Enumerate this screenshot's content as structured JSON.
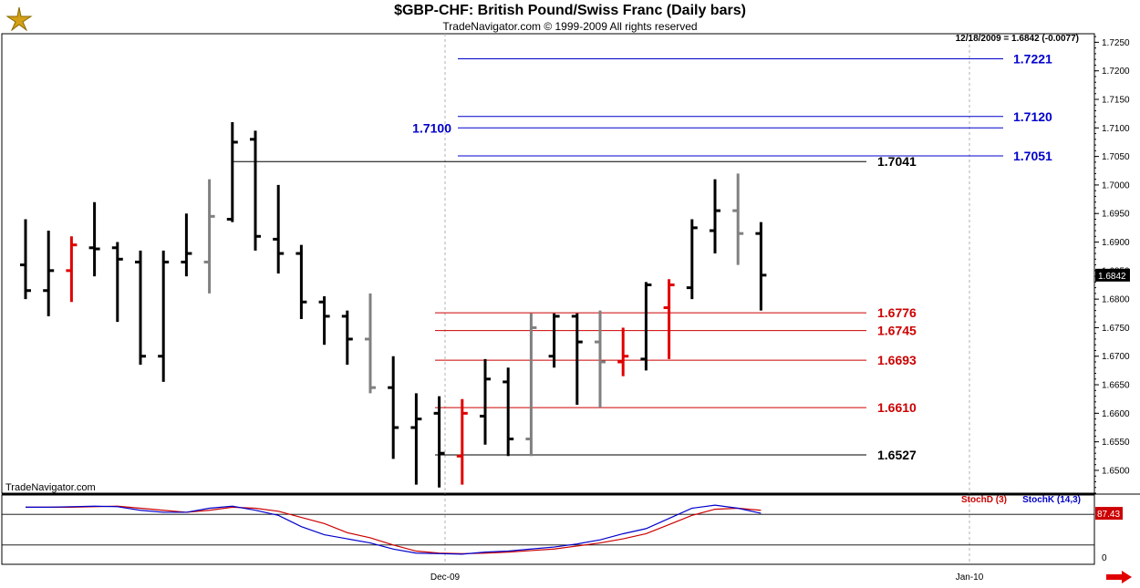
{
  "header": {
    "title": "$GBP-CHF:  British Pound/Swiss Franc  (Daily bars)",
    "copyright": "TradeNavigator.com © 1999-2009 All rights reserved",
    "quote": "12/18/2009 = 1.6842 (-0.0077)",
    "watermark": "TradeNavigator.com"
  },
  "indicator": {
    "stochd_label": "StochD (3)",
    "stochk_label": "StochK (14,3)",
    "last_value": "87.43",
    "zero_label": "0"
  },
  "colors": {
    "up": "#000000",
    "down_gray": "#808080",
    "red_bar": "#e00000",
    "blue_level": "#0000cc",
    "red_level": "#cc0000",
    "black_level": "#000000"
  },
  "chart_data": [
    {
      "type": "ohlc",
      "title": "$GBP-CHF:  British Pound/Swiss Franc  (Daily bars)",
      "y_ticks": [
        "1.7250",
        "1.7200",
        "1.7150",
        "1.7100",
        "1.7050",
        "1.7000",
        "1.6950",
        "1.6900",
        "1.6850",
        "1.6800",
        "1.6750",
        "1.6700",
        "1.6650",
        "1.6600",
        "1.6550",
        "1.6500"
      ],
      "ylim": [
        1.646,
        1.7265
      ],
      "x_labels": [
        "Dec-09",
        "Jan-10"
      ],
      "last_price": "1.6842",
      "bars": [
        {
          "i": 0,
          "o": 1.686,
          "h": 1.694,
          "l": 1.68,
          "c": 1.6815,
          "color": "black"
        },
        {
          "i": 1,
          "o": 1.6815,
          "h": 1.692,
          "l": 1.677,
          "c": 1.685,
          "color": "black"
        },
        {
          "i": 2,
          "o": 1.685,
          "h": 1.691,
          "l": 1.6795,
          "c": 1.6895,
          "color": "red"
        },
        {
          "i": 3,
          "o": 1.689,
          "h": 1.697,
          "l": 1.684,
          "c": 1.6888,
          "color": "black"
        },
        {
          "i": 4,
          "o": 1.689,
          "h": 1.69,
          "l": 1.676,
          "c": 1.687,
          "color": "black"
        },
        {
          "i": 5,
          "o": 1.6865,
          "h": 1.6885,
          "l": 1.6685,
          "c": 1.67,
          "color": "black"
        },
        {
          "i": 6,
          "o": 1.67,
          "h": 1.6885,
          "l": 1.6655,
          "c": 1.6865,
          "color": "black"
        },
        {
          "i": 7,
          "o": 1.6865,
          "h": 1.695,
          "l": 1.684,
          "c": 1.688,
          "color": "black"
        },
        {
          "i": 8,
          "o": 1.6865,
          "h": 1.701,
          "l": 1.681,
          "c": 1.6945,
          "color": "gray"
        },
        {
          "i": 9,
          "o": 1.694,
          "h": 1.711,
          "l": 1.6935,
          "c": 1.7075,
          "color": "black"
        },
        {
          "i": 10,
          "o": 1.708,
          "h": 1.7095,
          "l": 1.6885,
          "c": 1.691,
          "color": "black"
        },
        {
          "i": 11,
          "o": 1.6905,
          "h": 1.7,
          "l": 1.6845,
          "c": 1.688,
          "color": "black"
        },
        {
          "i": 12,
          "o": 1.688,
          "h": 1.6895,
          "l": 1.6765,
          "c": 1.6795,
          "color": "black"
        },
        {
          "i": 13,
          "o": 1.6795,
          "h": 1.6805,
          "l": 1.672,
          "c": 1.677,
          "color": "black"
        },
        {
          "i": 14,
          "o": 1.677,
          "h": 1.678,
          "l": 1.6685,
          "c": 1.673,
          "color": "black"
        },
        {
          "i": 15,
          "o": 1.673,
          "h": 1.681,
          "l": 1.6635,
          "c": 1.6645,
          "color": "gray"
        },
        {
          "i": 16,
          "o": 1.6645,
          "h": 1.67,
          "l": 1.652,
          "c": 1.6575,
          "color": "black"
        },
        {
          "i": 17,
          "o": 1.6575,
          "h": 1.6635,
          "l": 1.6475,
          "c": 1.659,
          "color": "black"
        },
        {
          "i": 18,
          "o": 1.66,
          "h": 1.663,
          "l": 1.647,
          "c": 1.653,
          "color": "black"
        },
        {
          "i": 19,
          "o": 1.6525,
          "h": 1.6625,
          "l": 1.6475,
          "c": 1.66,
          "color": "red"
        },
        {
          "i": 20,
          "o": 1.6595,
          "h": 1.6695,
          "l": 1.6545,
          "c": 1.666,
          "color": "black"
        },
        {
          "i": 21,
          "o": 1.6655,
          "h": 1.668,
          "l": 1.6525,
          "c": 1.6555,
          "color": "black"
        },
        {
          "i": 22,
          "o": 1.6555,
          "h": 1.6775,
          "l": 1.6525,
          "c": 1.675,
          "color": "gray"
        },
        {
          "i": 23,
          "o": 1.67,
          "h": 1.6775,
          "l": 1.668,
          "c": 1.677,
          "color": "black"
        },
        {
          "i": 24,
          "o": 1.677,
          "h": 1.6775,
          "l": 1.6615,
          "c": 1.6725,
          "color": "black"
        },
        {
          "i": 25,
          "o": 1.6725,
          "h": 1.678,
          "l": 1.661,
          "c": 1.669,
          "color": "gray"
        },
        {
          "i": 26,
          "o": 1.669,
          "h": 1.675,
          "l": 1.6665,
          "c": 1.67,
          "color": "red"
        },
        {
          "i": 27,
          "o": 1.6695,
          "h": 1.683,
          "l": 1.6675,
          "c": 1.6825,
          "color": "black"
        },
        {
          "i": 28,
          "o": 1.6785,
          "h": 1.6835,
          "l": 1.6695,
          "c": 1.6825,
          "color": "red"
        },
        {
          "i": 29,
          "o": 1.682,
          "h": 1.694,
          "l": 1.68,
          "c": 1.6925,
          "color": "black"
        },
        {
          "i": 30,
          "o": 1.692,
          "h": 1.701,
          "l": 1.688,
          "c": 1.6955,
          "color": "black"
        },
        {
          "i": 31,
          "o": 1.6955,
          "h": 1.702,
          "l": 1.686,
          "c": 1.6915,
          "color": "gray"
        },
        {
          "i": 32,
          "o": 1.6915,
          "h": 1.6935,
          "l": 1.678,
          "c": 1.6842,
          "color": "black"
        }
      ],
      "levels": [
        {
          "label": "1.7221",
          "value": 1.7221,
          "color": "blue"
        },
        {
          "label": "1.7120",
          "value": 1.712,
          "color": "blue"
        },
        {
          "label": "1.7100",
          "value": 1.71,
          "color": "blue"
        },
        {
          "label": "1.7051",
          "value": 1.7051,
          "color": "blue"
        },
        {
          "label": "1.7041",
          "value": 1.7041,
          "color": "black"
        },
        {
          "label": "1.6776",
          "value": 1.6776,
          "color": "red"
        },
        {
          "label": "1.6745",
          "value": 1.6745,
          "color": "red"
        },
        {
          "label": "1.6693",
          "value": 1.6693,
          "color": "red"
        },
        {
          "label": "1.6610",
          "value": 1.661,
          "color": "red"
        },
        {
          "label": "1.6527",
          "value": 1.6527,
          "color": "black"
        }
      ]
    },
    {
      "type": "line",
      "series": [
        {
          "name": "StochD (3)",
          "color": "#cc0000",
          "values": [
            94,
            94,
            94,
            95,
            96,
            92,
            88,
            84,
            88,
            94,
            92,
            86,
            74,
            62,
            44,
            34,
            20,
            8,
            4,
            3,
            4,
            6,
            9,
            12,
            18,
            24,
            32,
            42,
            60,
            78,
            90,
            92,
            88
          ]
        },
        {
          "name": "StochK (14,3)",
          "color": "#0000cc",
          "values": [
            94,
            94,
            95,
            96,
            95,
            88,
            84,
            84,
            92,
            96,
            88,
            78,
            56,
            40,
            32,
            24,
            12,
            4,
            3,
            2,
            6,
            8,
            12,
            16,
            22,
            30,
            42,
            52,
            72,
            92,
            98,
            92,
            82
          ]
        }
      ],
      "ylim": [
        0,
        100
      ]
    }
  ]
}
